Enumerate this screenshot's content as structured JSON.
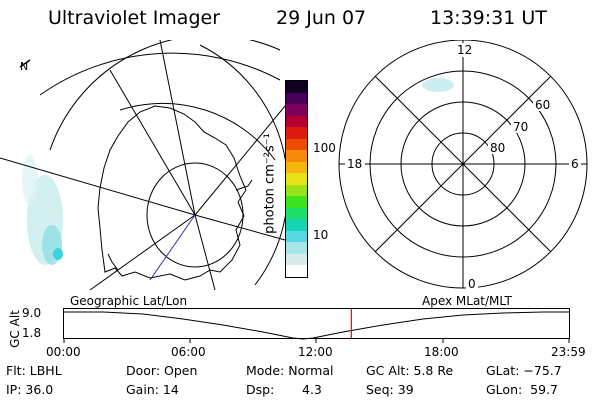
{
  "header": {
    "instrument": "Ultraviolet Imager",
    "date": "29 Jun 07",
    "time": "13:39:31 UT"
  },
  "left_panel": {
    "caption": "Geographic Lat/Lon",
    "north_marker": "N"
  },
  "colorbar": {
    "unit_label": "photon cm⁻²s⁻¹",
    "ticks": [
      "100",
      "10"
    ],
    "colors": [
      "#ffffff",
      "#d8ecee",
      "#a8e4e8",
      "#55d8df",
      "#15d5b6",
      "#1fe06b",
      "#3ee31f",
      "#9be21b",
      "#e7e219",
      "#f7b50f",
      "#f78a0a",
      "#ee4b05",
      "#db1b12",
      "#b30030",
      "#7f005a",
      "#460057",
      "#120023"
    ]
  },
  "right_panel": {
    "mlt_labels": {
      "top": "12",
      "left": "18",
      "right": "6",
      "bottom": "0"
    },
    "lat_labels": [
      "60",
      "70",
      "80"
    ],
    "caption": "Apex MLat/MLT"
  },
  "timeline": {
    "axis_label": "GC Alt",
    "y_max": "9.0",
    "y_min": "1.8",
    "ticks": [
      "00:00",
      "06:00",
      "12:00",
      "18:00",
      "23:59"
    ],
    "current_time_fraction": 0.569
  },
  "status": {
    "flt": "Flt: LBHL",
    "ip": "IP: 36.0",
    "door": "Door: Open",
    "gain": "Gain: 14",
    "mode": "Mode: Normal",
    "dsp_label": "Dsp:",
    "dsp_value": "4.3",
    "gc_alt": "GC Alt: 5.8 Re",
    "seq": "Seq: 39",
    "glat": "GLat: −75.7",
    "glon": "GLon:  59.7"
  }
}
